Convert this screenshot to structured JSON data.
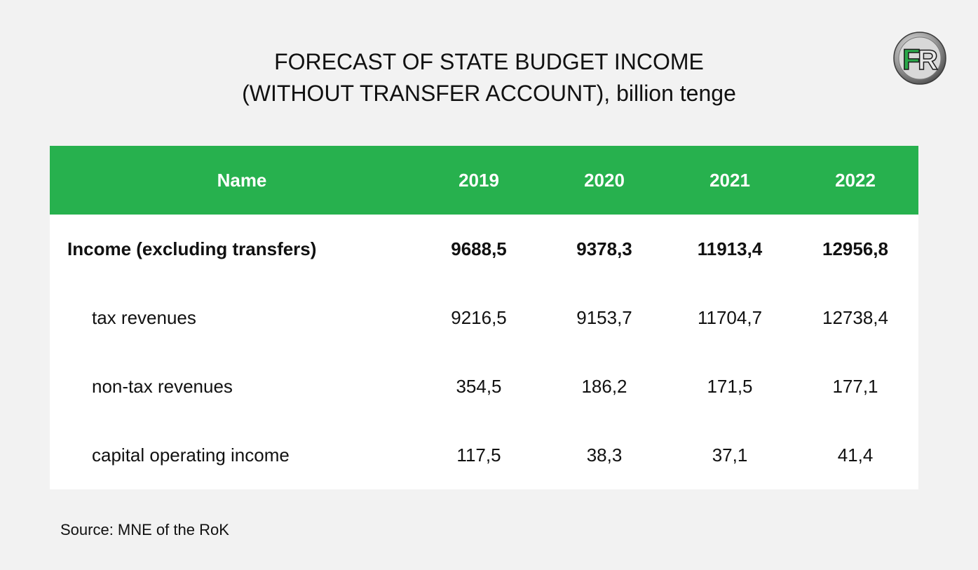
{
  "header": {
    "title_line1": "FORECAST OF STATE BUDGET INCOME",
    "title_line2": "(WITHOUT TRANSFER ACCOUNT), billion tenge"
  },
  "logo": {
    "text_main": "F",
    "text_secondary": "R",
    "icon": "fr-logo-icon"
  },
  "chart_data": {
    "type": "table",
    "columns": [
      "Name",
      "2019",
      "2020",
      "2021",
      "2022"
    ],
    "rows": [
      {
        "name": "Income (excluding transfers)",
        "values": [
          "9688,5",
          "9378,3",
          "11913,4",
          "12956,8"
        ]
      },
      {
        "name": "tax revenues",
        "values": [
          "9216,5",
          "9153,7",
          "11704,7",
          "12738,4"
        ]
      },
      {
        "name": "non-tax revenues",
        "values": [
          "354,5",
          "186,2",
          "171,5",
          "177,1"
        ]
      },
      {
        "name": "capital operating income",
        "values": [
          "117,5",
          "38,3",
          "37,1",
          "41,4"
        ]
      }
    ]
  },
  "footer": {
    "source": "Source: MNE of the RoK"
  },
  "colors": {
    "header_green": "#27b14e",
    "background": "#f2f2f2",
    "table_bg": "#ffffff"
  }
}
